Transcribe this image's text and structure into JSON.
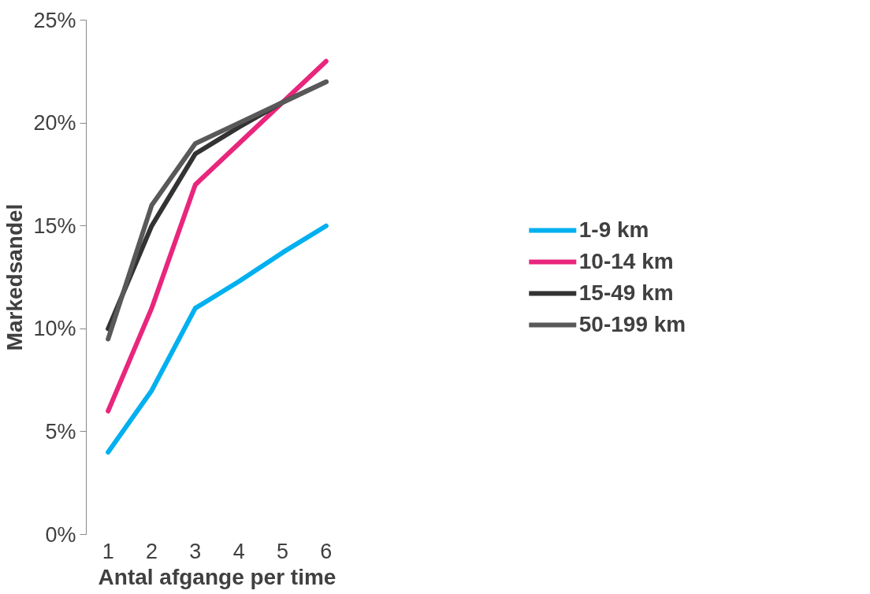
{
  "chart_data": {
    "type": "line",
    "xlabel": "Antal afgange per time",
    "ylabel": "Markedsandel",
    "categories": [
      "1",
      "2",
      "3",
      "4",
      "5",
      "6"
    ],
    "series": [
      {
        "name": "1-9 km",
        "color": "#00b0f0",
        "values": [
          4,
          7,
          11,
          12.3,
          13.7,
          15
        ]
      },
      {
        "name": "10-14 km",
        "color": "#e8267c",
        "values": [
          6,
          11,
          17,
          19,
          21,
          23
        ]
      },
      {
        "name": "15-49 km",
        "color": "#333333",
        "values": [
          10,
          15,
          18.5,
          19.8,
          21,
          22
        ]
      },
      {
        "name": "50-199 km",
        "color": "#595959",
        "values": [
          9.5,
          16,
          19,
          20,
          21,
          22
        ]
      }
    ],
    "ylim": [
      0,
      25
    ],
    "yticks": [
      {
        "value": 0,
        "label": "0%"
      },
      {
        "value": 5,
        "label": "5%"
      },
      {
        "value": 10,
        "label": "10%"
      },
      {
        "value": 15,
        "label": "15%"
      },
      {
        "value": 20,
        "label": "20%"
      },
      {
        "value": 25,
        "label": "25%"
      }
    ],
    "grid": false,
    "legend": "right",
    "marker": "none",
    "line_style": "solid"
  }
}
